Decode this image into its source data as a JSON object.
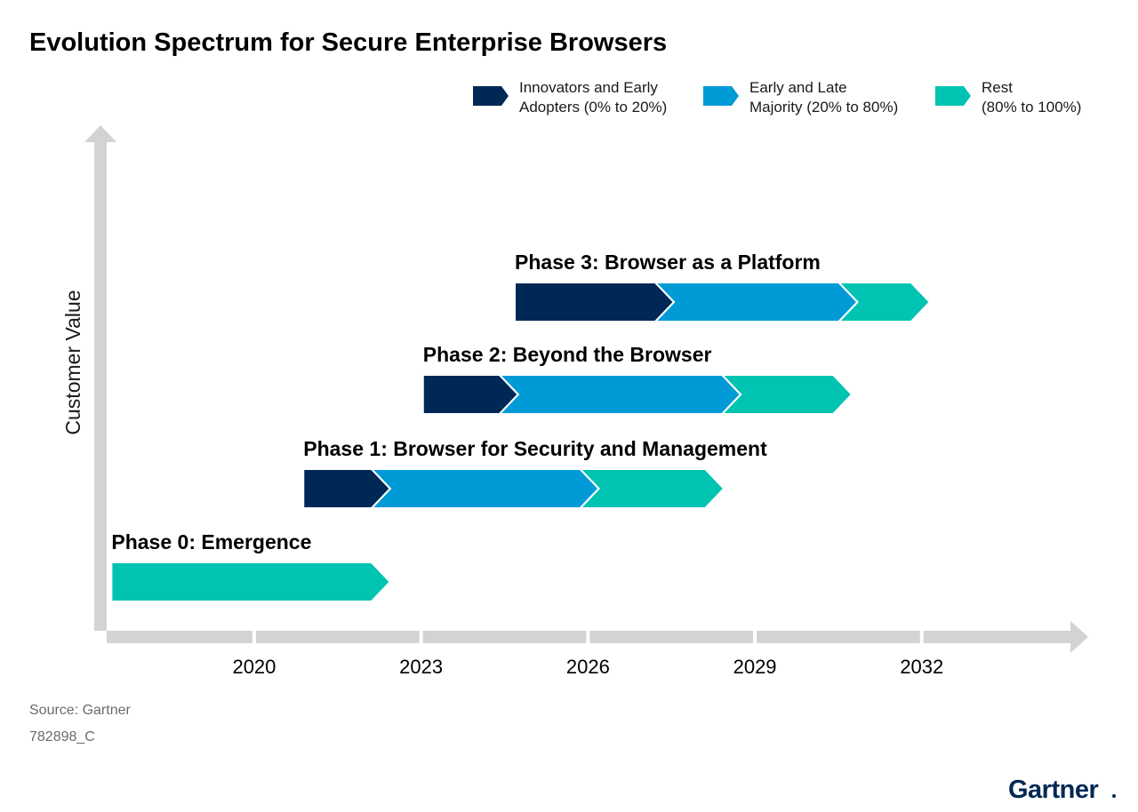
{
  "chart_data": {
    "type": "timeline",
    "title": "Evolution Spectrum for Secure Enterprise Browsers",
    "ylabel": "Customer Value",
    "xlabel": "",
    "x_ticks": [
      2020,
      2023,
      2026,
      2029,
      2032
    ],
    "x_range": [
      2017.3,
      2034.8
    ],
    "legend": [
      {
        "key": "innovators",
        "line1": "Innovators and Early",
        "line2": "Adopters (0% to 20%)",
        "color": "#002856"
      },
      {
        "key": "majority",
        "line1": "Early and Late",
        "line2": "Majority (20% to 80%)",
        "color": "#009ad7"
      },
      {
        "key": "rest",
        "line1": "Rest",
        "line2": "(80% to 100%)",
        "color": "#00c3b2"
      }
    ],
    "phases": [
      {
        "label": "Phase 3: Browser as a Platform",
        "segments": [
          {
            "key": "innovators",
            "start": 2024.7,
            "end": 2027.2
          },
          {
            "key": "majority",
            "start": 2027.2,
            "end": 2030.5
          },
          {
            "key": "rest",
            "start": 2030.5,
            "end": 2031.8
          }
        ]
      },
      {
        "label": "Phase 2: Beyond the Browser",
        "segments": [
          {
            "key": "innovators",
            "start": 2023.05,
            "end": 2024.4
          },
          {
            "key": "majority",
            "start": 2024.4,
            "end": 2028.4
          },
          {
            "key": "rest",
            "start": 2028.4,
            "end": 2030.4
          }
        ]
      },
      {
        "label": "Phase 1: Browser for Security and Management",
        "segments": [
          {
            "key": "innovators",
            "start": 2020.9,
            "end": 2022.1
          },
          {
            "key": "majority",
            "start": 2022.1,
            "end": 2025.85
          },
          {
            "key": "rest",
            "start": 2025.85,
            "end": 2028.1
          }
        ]
      },
      {
        "label": "Phase 0: Emergence",
        "segments": [
          {
            "key": "rest",
            "start": 2017.45,
            "end": 2022.1
          }
        ]
      }
    ]
  },
  "footer": {
    "source": "Source: Gartner",
    "id": "782898_C",
    "brand": "Gartner"
  }
}
